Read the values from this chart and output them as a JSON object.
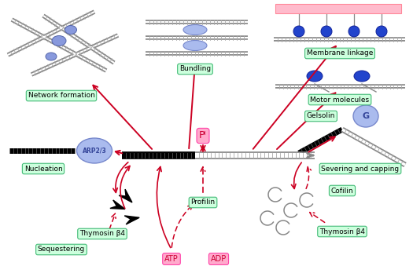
{
  "fig_width": 5.25,
  "fig_height": 3.53,
  "dpi": 100,
  "bg_color": "#ffffff",
  "green_box_fc": "#ccffdd",
  "green_box_ec": "#44bb77",
  "pink_box_fc": "#ffaacc",
  "pink_box_ec": "#ff44aa",
  "arrow_color": "#cc0022",
  "labels": {
    "network_formation": "Network formation",
    "bundling": "Bundling",
    "membrane_linkage": "Membrane linkage",
    "motor_molecules": "Motor molecules",
    "gelsolin": "Gelsolin",
    "severing_capping": "Severing and capping",
    "nucleation": "Nucleation",
    "pi": "Pᴵ",
    "profilin": "Profilin",
    "cofilin": "Cofilin",
    "thymosin_left": "Thymosin β4",
    "thymosin_right": "Thymosin β4",
    "sequestering": "Sequestering",
    "atp": "ATP",
    "adp": "ADP",
    "arp23": "ARP2/3",
    "g": "G"
  }
}
